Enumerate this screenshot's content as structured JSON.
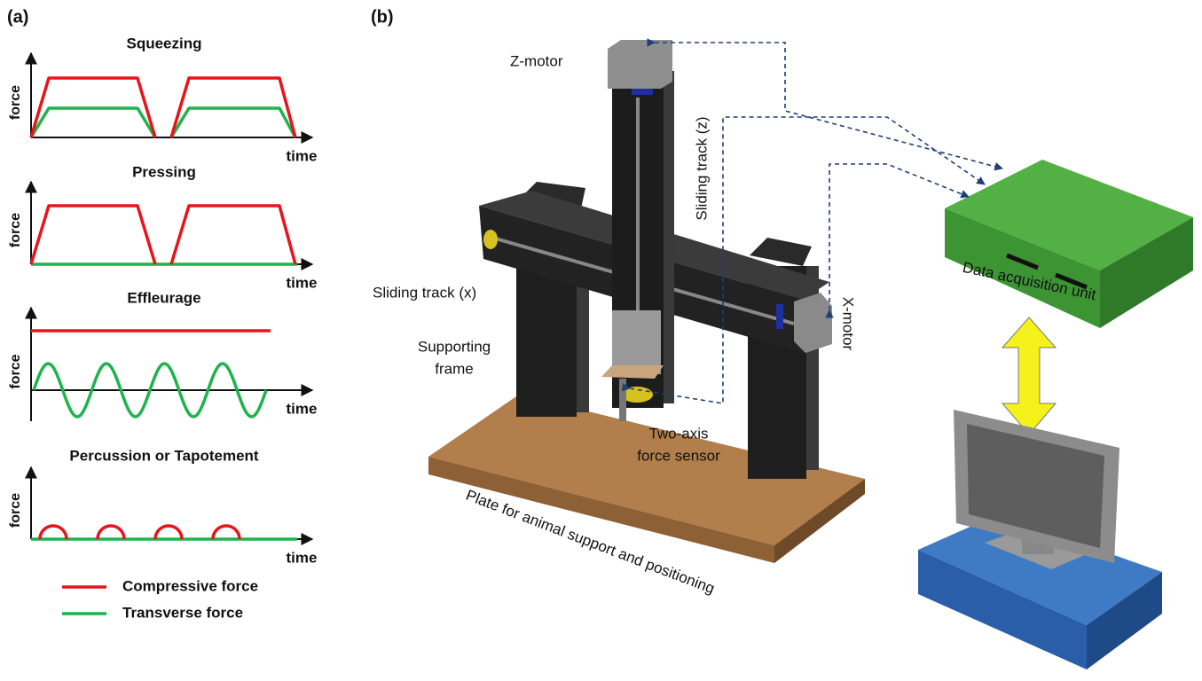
{
  "panel_a": {
    "label": "(a)",
    "plots": [
      {
        "title": "Squeezing",
        "y_label": "force",
        "x_label": "time"
      },
      {
        "title": "Pressing",
        "y_label": "force",
        "x_label": "time"
      },
      {
        "title": "Effleurage",
        "y_label": "force",
        "x_label": "time"
      },
      {
        "title": "Percussion or Tapotement",
        "y_label": "force",
        "x_label": "time"
      }
    ],
    "legend": [
      {
        "label": "Compressive force",
        "color": "#e8141b"
      },
      {
        "label": "Transverse force",
        "color": "#1db44b"
      }
    ]
  },
  "panel_b": {
    "label": "(b)",
    "labels": {
      "z_motor": [
        "Z-motor"
      ],
      "sliding_track_z": [
        "Sliding track (z)"
      ],
      "sliding_track_x": [
        "Sliding track (x)"
      ],
      "supporting_frame": [
        "Supporting",
        "frame"
      ],
      "force_sensor": [
        "Two-axis",
        "force sensor"
      ],
      "x_motor": [
        "X-motor"
      ],
      "daq": [
        "Data acquisition unit"
      ],
      "plate": [
        "Plate for animal support and positioning"
      ]
    }
  }
}
